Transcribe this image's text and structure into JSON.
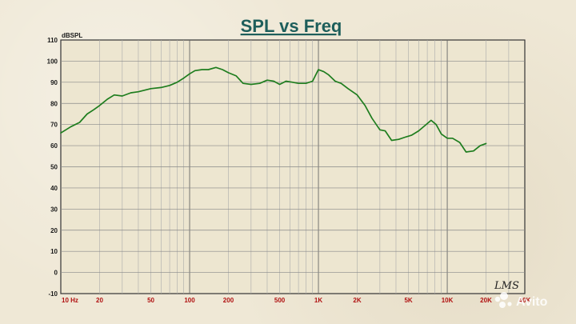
{
  "chart_data": {
    "type": "line",
    "title": "SPL vs Freq",
    "ylabel": "dBSPL",
    "xlabel": "",
    "xscale": "log",
    "xlim": [
      10,
      40000
    ],
    "ylim": [
      -10,
      110
    ],
    "grid": true,
    "yticks": [
      "110",
      "100",
      "90",
      "80",
      "70",
      "60",
      "50",
      "40",
      "30",
      "20",
      "10",
      "0",
      "-10"
    ],
    "xticks": [
      {
        "label": "10  Hz",
        "value": 10
      },
      {
        "label": "20",
        "value": 20
      },
      {
        "label": "50",
        "value": 50
      },
      {
        "label": "100",
        "value": 100
      },
      {
        "label": "200",
        "value": 200
      },
      {
        "label": "500",
        "value": 500
      },
      {
        "label": "1K",
        "value": 1000
      },
      {
        "label": "2K",
        "value": 2000
      },
      {
        "label": "5K",
        "value": 5000
      },
      {
        "label": "10K",
        "value": 10000
      },
      {
        "label": "20K",
        "value": 20000
      },
      {
        "label": "40K",
        "value": 40000
      }
    ],
    "series": [
      {
        "color": "#1e7d1e",
        "x": [
          10,
          12,
          14,
          16,
          18,
          20,
          23,
          26,
          30,
          35,
          40,
          50,
          60,
          70,
          80,
          90,
          100,
          110,
          125,
          140,
          160,
          180,
          200,
          230,
          260,
          300,
          350,
          400,
          450,
          500,
          560,
          630,
          700,
          800,
          900,
          1000,
          1100,
          1200,
          1350,
          1500,
          1700,
          2000,
          2300,
          2600,
          3000,
          3300,
          3700,
          4200,
          4700,
          5300,
          6000,
          6700,
          7500,
          8200,
          9000,
          10000,
          11000,
          12500,
          14000,
          16000,
          18000,
          20000
        ],
        "y": [
          66,
          69,
          71,
          75,
          77,
          79,
          82,
          84,
          83.5,
          85,
          85.5,
          87,
          87.5,
          88.5,
          90,
          92,
          94,
          95.5,
          96,
          96,
          97,
          96,
          94.5,
          93,
          89.5,
          89,
          89.5,
          91,
          90.5,
          89,
          90.5,
          90,
          89.5,
          89.5,
          90.5,
          96,
          95,
          93.5,
          90.5,
          89.5,
          87,
          84,
          79,
          73,
          67.5,
          67,
          62.5,
          63,
          64,
          65,
          67,
          69.5,
          72,
          70,
          65.5,
          63.5,
          63.5,
          61.5,
          57,
          57.5,
          60,
          61
        ]
      }
    ],
    "logo_text": "LMS",
    "watermark_text": "Avito"
  }
}
